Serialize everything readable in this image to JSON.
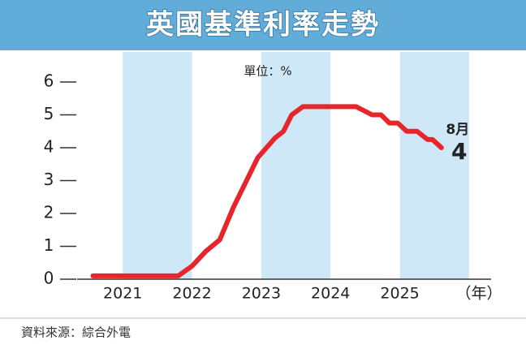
{
  "chart_data": {
    "type": "line",
    "title": "英國基準利率走勢",
    "unit_label": "單位：%",
    "xlabel": "（年）",
    "source": "資料來源：綜合外電",
    "annotation": "8月",
    "color": "#e6262b",
    "band_color": "#cfe8f8",
    "x": [
      2020.57,
      2021.8,
      2022.0,
      2022.2,
      2022.4,
      2022.6,
      2022.95,
      2023.2,
      2023.32,
      2023.44,
      2023.6,
      2024.37,
      2024.6,
      2024.73,
      2024.85,
      2024.97,
      2025.1,
      2025.25,
      2025.4,
      2025.47,
      2025.6
    ],
    "values": [
      0.1,
      0.1,
      0.4,
      0.85,
      1.2,
      2.2,
      3.7,
      4.3,
      4.5,
      5.0,
      5.25,
      5.25,
      5.0,
      5.0,
      4.75,
      4.75,
      4.5,
      4.5,
      4.25,
      4.25,
      4
    ],
    "xlim": [
      2020.4,
      2026.2
    ],
    "xticks": [
      2021,
      2022,
      2023,
      2024,
      2025
    ],
    "ylim": [
      0,
      6
    ],
    "yticks": [
      0,
      1,
      2,
      3,
      4,
      5,
      6
    ]
  }
}
